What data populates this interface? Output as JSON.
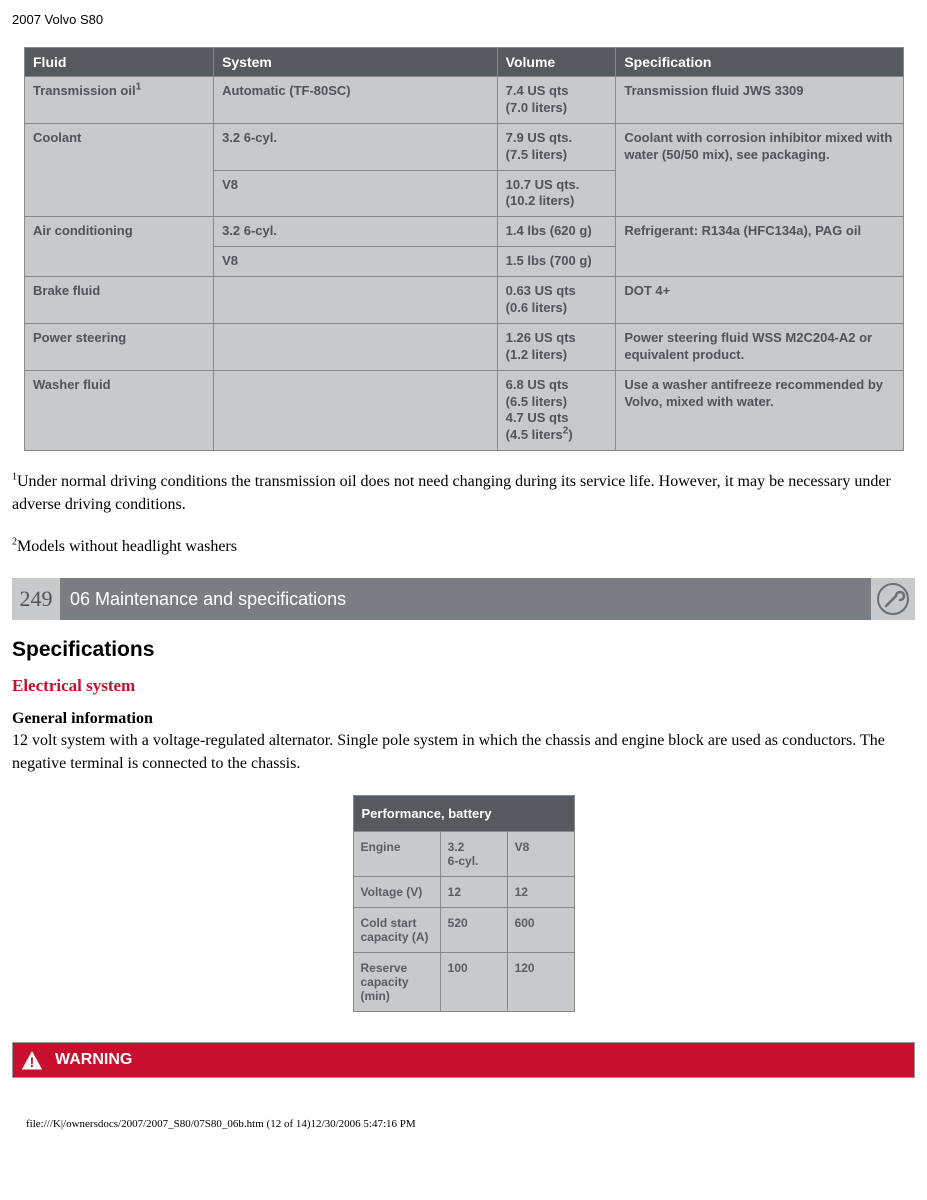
{
  "page_title": "2007 Volvo S80",
  "fluid_table": {
    "columns": [
      "Fluid",
      "System",
      "Volume",
      "Specification"
    ],
    "col_widths": [
      "188px",
      "282px",
      "118px",
      "286px"
    ],
    "header_bg": "#555a5e",
    "header_fg": "#ffffff",
    "cell_bg": "#c7c9cb",
    "cell_fg": "#505458",
    "border_color": "#888888",
    "rows": [
      {
        "fluid": "Transmission oil",
        "sup": "1",
        "system": "Automatic (TF-80SC)",
        "volume": "7.4 US qts\n(7.0 liters)",
        "spec": "Transmission fluid JWS 3309"
      },
      {
        "fluid": "Coolant",
        "rowspan_fluid": 2,
        "system": "3.2 6-cyl.",
        "volume": "7.9 US qts.\n(7.5 liters)",
        "spec": "Coolant with corrosion inhibitor mixed with water (50/50 mix), see packaging.",
        "rowspan_spec": 2
      },
      {
        "system": "V8",
        "volume": "10.7 US qts.\n(10.2 liters)"
      },
      {
        "fluid": "Air conditioning",
        "rowspan_fluid": 2,
        "system": "3.2 6-cyl.",
        "volume": "1.4 lbs (620 g)",
        "spec": "Refrigerant: R134a (HFC134a), PAG oil",
        "rowspan_spec": 2
      },
      {
        "system": "V8",
        "volume": "1.5 lbs (700 g)"
      },
      {
        "fluid": "Brake fluid",
        "system": "",
        "volume": "0.63 US qts\n(0.6 liters)",
        "spec": "DOT 4+"
      },
      {
        "fluid": "Power steering",
        "system": "",
        "volume": "1.26 US qts\n(1.2 liters)",
        "spec": "Power steering fluid WSS M2C204-A2 or equivalent product."
      },
      {
        "fluid": "Washer fluid",
        "system": "",
        "volume": "6.8 US qts\n(6.5 liters)\n4.7 US qts\n(4.5 liters",
        "vol_sup": "2",
        "vol_tail": ")",
        "spec": "Use a washer antifreeze recommended by Volvo, mixed with water."
      }
    ]
  },
  "footnote1_sup": "1",
  "footnote1": "Under normal driving conditions the transmission oil does not need changing during its service life. However, it may be necessary under adverse driving conditions.",
  "footnote2_sup": "2",
  "footnote2": "Models without headlight washers",
  "section_bar": {
    "page_num": "249",
    "title": "06 Maintenance and specifications",
    "num_bg": "#c7c9cb",
    "title_bg": "#7a7e82",
    "icon_bg": "#c7c9cb",
    "icon_stroke": "#6b6f73"
  },
  "specs_heading": "Specifications",
  "red_heading": "Electrical system",
  "red_color": "#c8102e",
  "sub_heading": "General information",
  "body_para": "12 volt system with a voltage-regulated alternator. Single pole system in which the chassis and engine block are used as conductors. The negative terminal is connected to the chassis.",
  "battery_table": {
    "header": "Performance, battery",
    "col_widths": [
      "86px",
      "66px",
      "66px"
    ],
    "header_bg": "#555a5e",
    "cell_bg": "#c7c9cb",
    "rows": [
      [
        "Engine",
        "3.2\n6-cyl.",
        "V8"
      ],
      [
        "Voltage (V)",
        "12",
        "12"
      ],
      [
        "Cold start capacity (A)",
        "520",
        "600"
      ],
      [
        "Reserve capacity (min)",
        "100",
        "120"
      ]
    ]
  },
  "warning": {
    "label": "WARNING",
    "bg": "#c8102e"
  },
  "footer": "file:///K|/ownersdocs/2007/2007_S80/07S80_06b.htm (12 of 14)12/30/2006 5:47:16 PM"
}
